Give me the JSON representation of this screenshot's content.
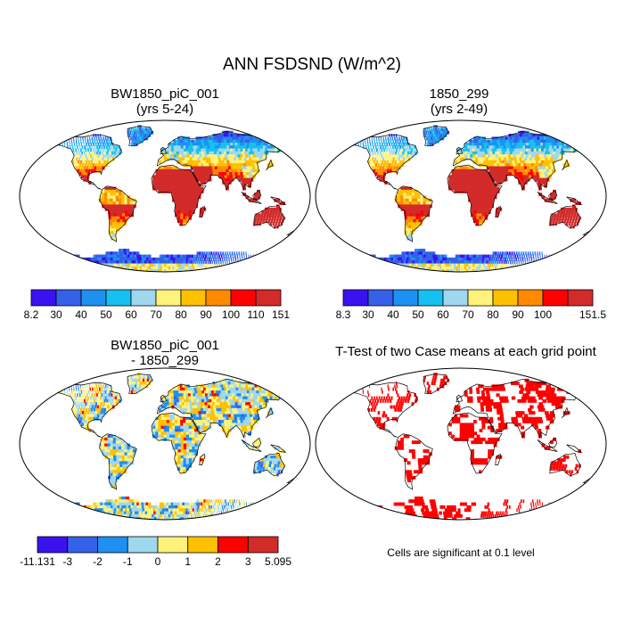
{
  "title": "ANN FSDSND (W/m^2)",
  "panels": [
    {
      "title_line1": "BW1850_piC_001",
      "title_line2": "(yrs 5-24)",
      "colorbar": {
        "colors": [
          "#3a12f0",
          "#3560e8",
          "#1e90f0",
          "#16c0f0",
          "#9fd7ef",
          "#fff27a",
          "#ffc000",
          "#ff8a00",
          "#ff0000",
          "#d32a2a"
        ],
        "labels": [
          "8.2",
          "30",
          "40",
          "50",
          "60",
          "70",
          "80",
          "90",
          "100",
          "110",
          "151"
        ]
      }
    },
    {
      "title_line1": "1850_299",
      "title_line2": "(yrs 2-49)",
      "colorbar": {
        "colors": [
          "#3a12f0",
          "#3560e8",
          "#1e90f0",
          "#16c0f0",
          "#9fd7ef",
          "#fff27a",
          "#ffc000",
          "#ff8a00",
          "#ff0000",
          "#d32a2a"
        ],
        "labels": [
          "8.3",
          "30",
          "40",
          "50",
          "60",
          "70",
          "80",
          "90",
          "100",
          "",
          "151.5"
        ]
      }
    },
    {
      "title_line1": "BW1850_piC_001",
      "title_line2": "- 1850_299",
      "colorbar": {
        "colors": [
          "#3a12f0",
          "#3560e8",
          "#1e90f0",
          "#9fd7ef",
          "#fff27a",
          "#ffc000",
          "#ff0000",
          "#d32a2a"
        ],
        "labels": [
          "-11.131",
          "-3",
          "-2",
          "-1",
          "0",
          "1",
          "2",
          "3",
          "5.095"
        ]
      }
    },
    {
      "title_line1": "T-Test of two Case means at each grid point",
      "note": "Cells are significant at 0.1 level",
      "significance_color": "#ff0000"
    }
  ]
}
